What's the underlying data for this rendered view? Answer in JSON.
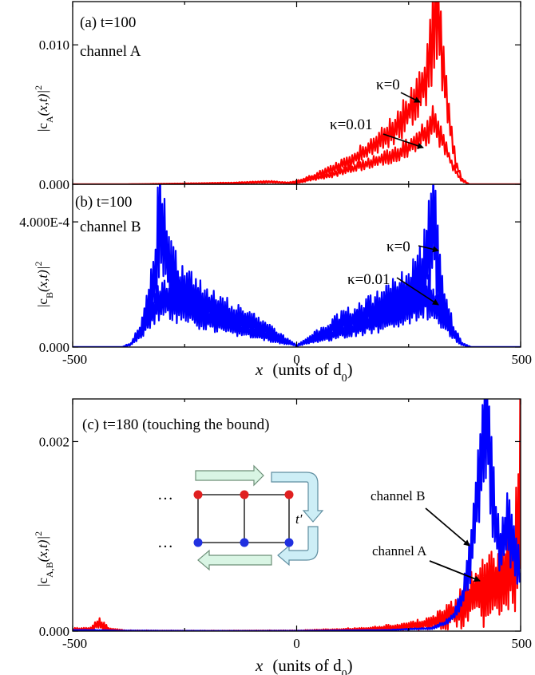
{
  "x_axis": {
    "range": [
      -500,
      500
    ],
    "ticks": [
      "-500",
      "0",
      "500"
    ],
    "label": {
      "var": "x",
      "text": "(units of d",
      "sub": "0",
      "close": ")"
    }
  },
  "inset": {
    "dots": "…",
    "hopping_label": "t′"
  },
  "chart_data": [
    {
      "type": "line",
      "id": "a",
      "title": "(a) t=100",
      "subtitle": "channel A",
      "ylabel": {
        "pre": "|c",
        "sub": "A",
        "post": "(x,t)|",
        "sup": "2"
      },
      "ylim": [
        0,
        0.0131
      ],
      "yticks": [
        {
          "v": 0.0,
          "label": "0.000"
        },
        {
          "v": 0.01,
          "label": "0.010"
        }
      ],
      "xlim": [
        -500,
        500
      ],
      "color": "#ff0000",
      "annotations": [
        {
          "text": "κ=0"
        },
        {
          "text": "κ=0.01"
        }
      ],
      "series": [
        {
          "kappa": 0,
          "x": [
            -380,
            -150,
            -60,
            -20,
            0,
            40,
            80,
            120,
            160,
            200,
            230,
            250,
            270,
            285,
            300,
            310,
            318,
            325,
            335,
            345,
            355,
            368,
            385,
            500
          ],
          "y": [
            0,
            0.0001,
            0.0002,
            0.0001,
            0.0002,
            0.0006,
            0.0011,
            0.0017,
            0.0025,
            0.0034,
            0.0043,
            0.0052,
            0.0062,
            0.0072,
            0.0095,
            0.0127,
            0.0112,
            0.0085,
            0.006,
            0.0037,
            0.0016,
            0.0004,
            0,
            0
          ]
        },
        {
          "kappa": 0.01,
          "x": [
            -380,
            -150,
            -60,
            0,
            40,
            80,
            120,
            160,
            200,
            230,
            260,
            290,
            305,
            315,
            325,
            335,
            345,
            355,
            368,
            385,
            500
          ],
          "y": [
            0,
            8e-05,
            0.00015,
            0.0001,
            0.0004,
            0.0007,
            0.0011,
            0.0015,
            0.0019,
            0.0023,
            0.0028,
            0.0038,
            0.0045,
            0.004,
            0.0032,
            0.0024,
            0.0016,
            0.0009,
            0.0003,
            0,
            0
          ]
        }
      ]
    },
    {
      "type": "line",
      "id": "b",
      "title": "(b) t=100",
      "subtitle": "channel B",
      "ylabel": {
        "pre": "|c",
        "sub": "B",
        "post": "(x,t)|",
        "sup": "2"
      },
      "ylim": [
        0,
        0.00052
      ],
      "yticks": [
        {
          "v": 0.0,
          "label": "0.000"
        },
        {
          "v": 0.0004,
          "label": "4.000E-4"
        }
      ],
      "xlim": [
        -500,
        500
      ],
      "color": "#0000ff",
      "annotations": [
        {
          "text": "κ=0"
        },
        {
          "text": "κ=0.01"
        }
      ],
      "series": [
        {
          "kappa": 0,
          "x": [
            -390,
            -370,
            -350,
            -330,
            -315,
            -305,
            -295,
            -280,
            -250,
            -200,
            -150,
            -100,
            -50,
            0,
            50,
            100,
            150,
            200,
            250,
            280,
            295,
            305,
            315,
            330,
            350,
            370,
            390,
            500
          ],
          "y": [
            0,
            1e-05,
            5e-05,
            0.00014,
            0.00026,
            0.0004,
            0.00032,
            0.00022,
            0.00017,
            0.00013,
            0.0001,
            7.5e-05,
            4e-05,
            5e-06,
            4e-05,
            7.5e-05,
            0.0001,
            0.00013,
            0.00017,
            0.00022,
            0.00032,
            0.0004,
            0.00026,
            0.00014,
            5e-05,
            1e-05,
            0,
            0
          ]
        },
        {
          "kappa": 0.01,
          "x": [
            -390,
            -370,
            -350,
            -330,
            -310,
            -295,
            -270,
            -230,
            -180,
            -120,
            -60,
            0,
            60,
            120,
            180,
            230,
            270,
            295,
            310,
            330,
            350,
            370,
            390,
            500
          ],
          "y": [
            0,
            8e-06,
            4e-05,
            9e-05,
            0.00014,
            0.00016,
            0.00014,
            0.00011,
            8e-05,
            5.5e-05,
            3e-05,
            5e-06,
            3e-05,
            5.5e-05,
            8e-05,
            0.00011,
            0.00014,
            0.00016,
            0.00014,
            9e-05,
            4e-05,
            8e-06,
            0,
            0
          ]
        }
      ]
    },
    {
      "type": "line",
      "id": "c",
      "title": "(c) t=180 (touching the bound)",
      "ylabel": {
        "pre": "|c",
        "sub": "A,B",
        "post": "(x,t)|",
        "sup": "2"
      },
      "ylim": [
        0,
        0.00245
      ],
      "yticks": [
        {
          "v": 0.0,
          "label": "0.000"
        },
        {
          "v": 0.002,
          "label": "0.002"
        }
      ],
      "xlim": [
        -500,
        500
      ],
      "annotations": [
        {
          "text": "channel B"
        },
        {
          "text": "channel A"
        }
      ],
      "series": [
        {
          "name": "channel A",
          "color": "#ff0000",
          "x": [
            -500,
            -460,
            -440,
            -420,
            -380,
            -200,
            0,
            150,
            250,
            300,
            340,
            370,
            390,
            410,
            430,
            450,
            470,
            485,
            495,
            500
          ],
          "y": [
            2e-05,
            2e-05,
            8e-05,
            2e-05,
            5e-06,
            3e-06,
            5e-06,
            2e-05,
            5e-05,
            9e-05,
            0.00016,
            0.00026,
            0.00034,
            0.0004,
            0.00046,
            0.00052,
            0.00058,
            0.0007,
            0.0012,
            0.002
          ]
        },
        {
          "name": "channel B",
          "color": "#0000ff",
          "x": [
            -500,
            -450,
            -400,
            -300,
            -100,
            0,
            200,
            300,
            330,
            350,
            370,
            390,
            405,
            415,
            422,
            430,
            440,
            455,
            470,
            485,
            495,
            500
          ],
          "y": [
            1e-05,
            1e-05,
            5e-06,
            3e-06,
            2e-06,
            3e-06,
            1e-05,
            3e-05,
            8e-05,
            0.00016,
            0.00035,
            0.0008,
            0.0015,
            0.0021,
            0.00225,
            0.0019,
            0.0013,
            0.0009,
            0.0011,
            0.00095,
            0.0007,
            0.0005
          ]
        }
      ]
    }
  ]
}
